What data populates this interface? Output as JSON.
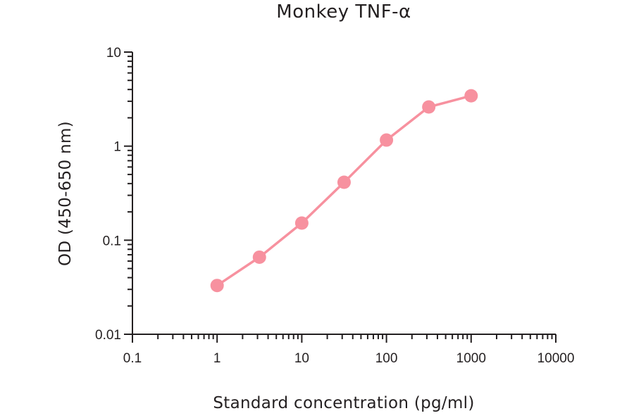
{
  "chart_data": {
    "type": "line",
    "title": "Monkey TNF-α",
    "xlabel": "Standard concentration (pg/ml)",
    "ylabel": "OD (450-650 nm)",
    "xscale": "log",
    "yscale": "log",
    "xlim": [
      0.1,
      10000
    ],
    "ylim": [
      0.01,
      10
    ],
    "xticks": [
      "0.1",
      "1",
      "10",
      "100",
      "1000",
      "10000"
    ],
    "yticks": [
      "0.01",
      "0.1",
      "1",
      "10"
    ],
    "grid": false,
    "legend": null,
    "series": [
      {
        "name": "Monkey TNF-α",
        "color": "#f7919f",
        "marker": "circle",
        "x": [
          1,
          3.16,
          10,
          31.6,
          100,
          316,
          1000
        ],
        "y": [
          0.033,
          0.066,
          0.152,
          0.413,
          1.16,
          2.61,
          3.43
        ]
      }
    ]
  },
  "axis_color": "#231f20"
}
